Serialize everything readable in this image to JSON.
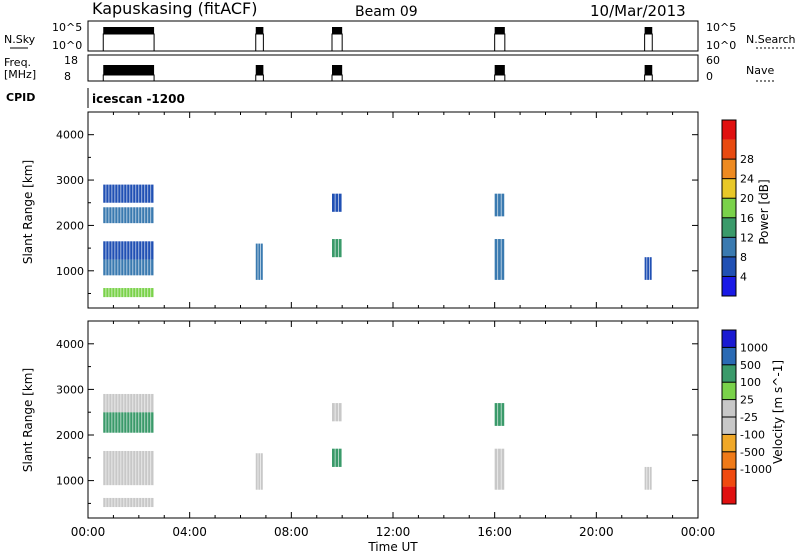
{
  "header": {
    "station": "Kapuskasing (fitACF)",
    "beam": "Beam 09",
    "date": "10/Mar/2013"
  },
  "panel_labels": {
    "nsky": "N.Sky",
    "nsky_ticks": [
      "10^5",
      "10^0"
    ],
    "nsearch": "N.Search",
    "nsearch_ticks": [
      "10^5",
      "10^0"
    ],
    "freq": "Freq.",
    "freq_unit": "[MHz]",
    "freq_ticks": [
      "18",
      "8"
    ],
    "nave": "Nave",
    "nave_ticks": [
      "60",
      "0"
    ],
    "cpid": "CPID",
    "cpid_value": "icescan -1200"
  },
  "colors": {
    "power": [
      "#1a1ae6",
      "#2050b4",
      "#3a7ab0",
      "#3a9a6a",
      "#7ad24a",
      "#e8c828",
      "#ee8a20",
      "#e84a10",
      "#e01010"
    ],
    "velocity": [
      "#e01010",
      "#f04a10",
      "#f07a18",
      "#f0a828",
      "#c8c8c8",
      "#c8c8c8",
      "#7ad24a",
      "#3a9a6a",
      "#2a6ab4",
      "#1a1ad2"
    ]
  },
  "chart_data": [
    {
      "type": "heatmap",
      "id": "power",
      "xlabel": "",
      "ylabel": "Slant Range [km]",
      "colorbar_label": "Power [dB]",
      "colorbar_ticks": [
        "4",
        "8",
        "12",
        "16",
        "20",
        "24",
        "28"
      ],
      "yticks": [
        1000,
        2000,
        3000,
        4000
      ],
      "ylim": [
        180,
        4500
      ],
      "xlim_hours": [
        0,
        24
      ],
      "blocks": [
        {
          "t0": 0.6,
          "t1": 2.6,
          "r0": 420,
          "r1": 620,
          "value": 16
        },
        {
          "t0": 0.6,
          "t1": 2.6,
          "r0": 900,
          "r1": 1250,
          "value": 10
        },
        {
          "t0": 0.6,
          "t1": 2.6,
          "r0": 1250,
          "r1": 1650,
          "value": 6
        },
        {
          "t0": 0.6,
          "t1": 2.6,
          "r0": 2050,
          "r1": 2400,
          "value": 10
        },
        {
          "t0": 0.6,
          "t1": 2.6,
          "r0": 2500,
          "r1": 2900,
          "value": 6
        },
        {
          "t0": 6.6,
          "t1": 6.9,
          "r0": 800,
          "r1": 1600,
          "value": 10
        },
        {
          "t0": 9.6,
          "t1": 10.0,
          "r0": 1300,
          "r1": 1700,
          "value": 14
        },
        {
          "t0": 9.6,
          "t1": 10.0,
          "r0": 2300,
          "r1": 2700,
          "value": 6
        },
        {
          "t0": 16.0,
          "t1": 16.4,
          "r0": 800,
          "r1": 1700,
          "value": 8
        },
        {
          "t0": 16.0,
          "t1": 16.4,
          "r0": 2200,
          "r1": 2700,
          "value": 10
        },
        {
          "t0": 21.9,
          "t1": 22.2,
          "r0": 800,
          "r1": 1300,
          "value": 6
        }
      ]
    },
    {
      "type": "heatmap",
      "id": "velocity",
      "xlabel": "Time UT",
      "ylabel": "Slant Range [km]",
      "colorbar_label": "Velocity [m s^-1]",
      "colorbar_ticks": [
        "1000",
        "500",
        "100",
        "25",
        "-25",
        "-100",
        "-500",
        "-1000"
      ],
      "yticks": [
        1000,
        2000,
        3000,
        4000
      ],
      "ylim": [
        180,
        4500
      ],
      "xlim_hours": [
        0,
        24
      ],
      "xticks": [
        "00:00",
        "04:00",
        "08:00",
        "12:00",
        "16:00",
        "20:00",
        "00:00"
      ],
      "blocks": [
        {
          "t0": 0.6,
          "t1": 2.6,
          "r0": 420,
          "r1": 620,
          "value": 0
        },
        {
          "t0": 0.6,
          "t1": 2.6,
          "r0": 900,
          "r1": 1650,
          "value": 0
        },
        {
          "t0": 0.6,
          "t1": 2.6,
          "r0": 2050,
          "r1": 2500,
          "value": 100
        },
        {
          "t0": 0.6,
          "t1": 2.6,
          "r0": 2500,
          "r1": 2900,
          "value": -100
        },
        {
          "t0": 6.6,
          "t1": 6.9,
          "r0": 800,
          "r1": 1600,
          "value": -100
        },
        {
          "t0": 9.6,
          "t1": 10.0,
          "r0": 1300,
          "r1": 1700,
          "value": 100
        },
        {
          "t0": 9.6,
          "t1": 10.0,
          "r0": 2300,
          "r1": 2700,
          "value": 0
        },
        {
          "t0": 16.0,
          "t1": 16.4,
          "r0": 800,
          "r1": 1700,
          "value": 0
        },
        {
          "t0": 16.0,
          "t1": 16.4,
          "r0": 2200,
          "r1": 2700,
          "value": 100
        },
        {
          "t0": 21.9,
          "t1": 22.2,
          "r0": 800,
          "r1": 1300,
          "value": 0
        }
      ]
    }
  ],
  "operation_intervals_hours": [
    [
      0.6,
      2.6
    ],
    [
      6.6,
      6.9
    ],
    [
      9.6,
      10.0
    ],
    [
      16.0,
      16.4
    ],
    [
      21.9,
      22.2
    ]
  ]
}
